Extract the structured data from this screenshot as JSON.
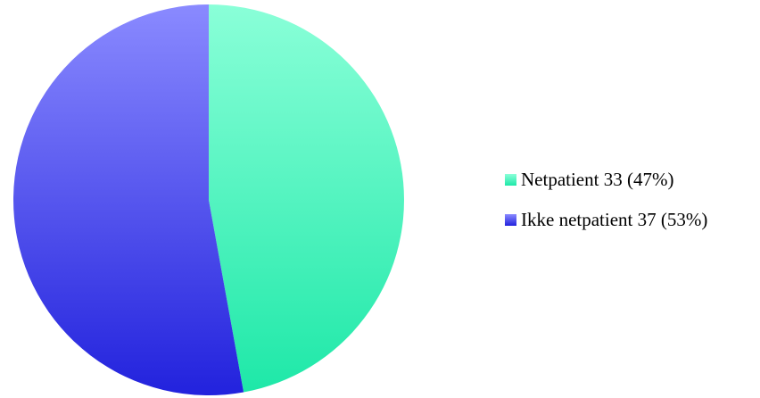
{
  "chart_data": {
    "type": "pie",
    "title": "",
    "start_angle_deg": 0,
    "direction": "clockwise",
    "legend_position": "right",
    "slices": [
      {
        "label": "Netpatient",
        "value": 33,
        "percent": 47,
        "legend_text": "Netpatient 33 (47%)",
        "color": "#1ee8a8",
        "color_light": "#8affd8"
      },
      {
        "label": "Ikke netpatient",
        "value": 37,
        "percent": 53,
        "legend_text": "Ikke netpatient 37 (53%)",
        "color": "#2222dd",
        "color_light": "#8a8aff"
      }
    ]
  }
}
